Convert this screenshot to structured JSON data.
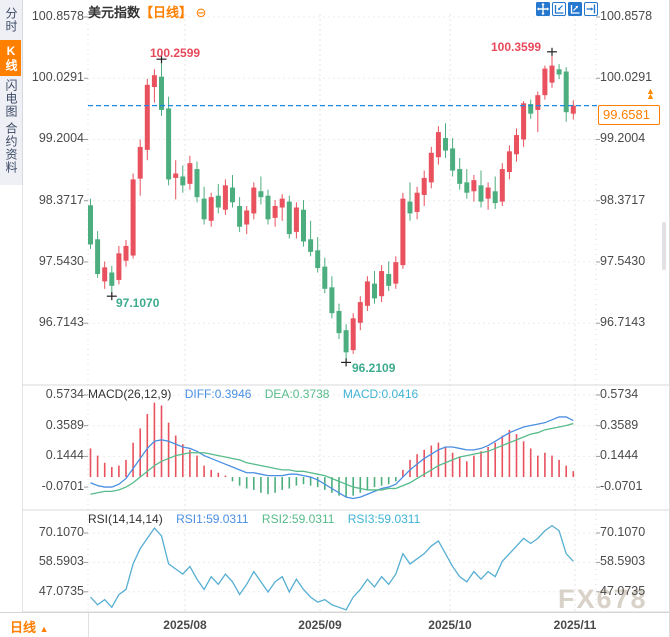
{
  "sidebar": {
    "items": [
      {
        "label": "分时图",
        "active": false
      },
      {
        "label": "K线图",
        "active": true
      },
      {
        "label": "闪电图",
        "active": false
      },
      {
        "label": "合约资料",
        "active": false
      }
    ]
  },
  "header": {
    "title": "美元指数",
    "period": "【日线】",
    "collapse_icon": "⊖"
  },
  "toolbar": {
    "icons": [
      {
        "name": "move-crosshair-icon",
        "active": true
      },
      {
        "name": "compress-time-icon",
        "active": false
      },
      {
        "name": "expand-time-icon",
        "active": true
      },
      {
        "name": "jump-to-latest-icon",
        "active": false
      }
    ]
  },
  "price_marker": {
    "value": "99.6581"
  },
  "bottom_bar": {
    "period_label": "日线",
    "arrow": "▲",
    "dates": [
      "2025/08",
      "2025/09",
      "2025/10",
      "2025/11"
    ]
  },
  "watermark": "FX678",
  "colors": {
    "up": "#e8515d",
    "down": "#4cae7e",
    "accent_orange": "#ff7f00",
    "diff_line": "#4a8fe2",
    "dea_line": "#57bb8a",
    "rsi_line": "#56aed2",
    "dashed_line": "#1e88e5",
    "ann_high": "#e8495a",
    "ann_low": "#3cab8d",
    "icon_blue": "#2678cf",
    "grid": "#e4e4e4",
    "divider": "#d9d9d9"
  },
  "chart_data": [
    {
      "type": "candlestick",
      "title": "美元指数【日线】",
      "y_axis_labels": [
        "100.8578",
        "100.0291",
        "99.2004",
        "98.3717",
        "97.5430",
        "96.7143"
      ],
      "ylim": [
        96.3,
        101.1
      ],
      "x_axis_labels": [
        "2025/08",
        "2025/09",
        "2025/10",
        "2025/11"
      ],
      "grid": true,
      "current_price": 99.6581,
      "current_price_label": "99.6581",
      "annotations": [
        {
          "text": "100.2599",
          "type": "high",
          "candle_index": 10
        },
        {
          "text": "100.3599",
          "type": "high",
          "candle_index": 65
        },
        {
          "text": "97.1070",
          "type": "low",
          "candle_index": 3
        },
        {
          "text": "96.2109",
          "type": "low",
          "candle_index": 36
        }
      ],
      "candles": [
        [
          98.31,
          98.4,
          97.72,
          97.78
        ],
        [
          97.85,
          97.96,
          97.33,
          97.38
        ],
        [
          97.28,
          97.55,
          97.18,
          97.47
        ],
        [
          97.4,
          97.49,
          97.107,
          97.22
        ],
        [
          97.3,
          97.76,
          97.24,
          97.66
        ],
        [
          97.56,
          97.84,
          97.48,
          97.76
        ],
        [
          97.63,
          98.74,
          97.59,
          98.66
        ],
        [
          98.67,
          99.2,
          98.44,
          99.1
        ],
        [
          99.06,
          100.02,
          98.92,
          99.94
        ],
        [
          99.91,
          100.15,
          99.7,
          100.07
        ],
        [
          100.05,
          100.2599,
          99.52,
          99.6
        ],
        [
          99.62,
          99.78,
          98.58,
          98.66
        ],
        [
          98.68,
          98.92,
          98.39,
          98.74
        ],
        [
          98.7,
          98.85,
          98.48,
          98.58
        ],
        [
          98.6,
          98.98,
          98.52,
          98.88
        ],
        [
          98.8,
          98.9,
          98.35,
          98.42
        ],
        [
          98.4,
          98.56,
          98.05,
          98.12
        ],
        [
          98.1,
          98.48,
          98.02,
          98.42
        ],
        [
          98.44,
          98.6,
          98.2,
          98.28
        ],
        [
          98.25,
          98.66,
          98.18,
          98.58
        ],
        [
          98.55,
          98.72,
          98.28,
          98.35
        ],
        [
          98.3,
          98.42,
          97.95,
          98.02
        ],
        [
          98.05,
          98.3,
          97.92,
          98.24
        ],
        [
          98.2,
          98.62,
          98.12,
          98.55
        ],
        [
          98.5,
          98.7,
          98.32,
          98.42
        ],
        [
          98.44,
          98.52,
          98.05,
          98.12
        ],
        [
          98.14,
          98.38,
          98.02,
          98.3
        ],
        [
          98.28,
          98.46,
          98.1,
          98.4
        ],
        [
          98.36,
          98.44,
          97.86,
          97.92
        ],
        [
          97.95,
          98.35,
          97.86,
          98.28
        ],
        [
          98.25,
          98.38,
          97.75,
          97.82
        ],
        [
          97.85,
          98.1,
          97.62,
          97.68
        ],
        [
          97.7,
          97.88,
          97.4,
          97.46
        ],
        [
          97.48,
          97.6,
          97.12,
          97.18
        ],
        [
          97.2,
          97.35,
          96.78,
          96.85
        ],
        [
          96.88,
          96.98,
          96.5,
          96.58
        ],
        [
          96.62,
          96.7,
          96.2109,
          96.32
        ],
        [
          96.35,
          96.85,
          96.3,
          96.78
        ],
        [
          96.72,
          97.08,
          96.62,
          97.0
        ],
        [
          96.95,
          97.35,
          96.88,
          97.28
        ],
        [
          97.25,
          97.42,
          96.98,
          97.05
        ],
        [
          97.08,
          97.5,
          97.0,
          97.42
        ],
        [
          97.38,
          97.55,
          97.15,
          97.22
        ],
        [
          97.25,
          97.62,
          97.18,
          97.54
        ],
        [
          97.5,
          98.48,
          97.45,
          98.4
        ],
        [
          98.36,
          98.62,
          98.1,
          98.2
        ],
        [
          98.22,
          98.56,
          98.12,
          98.48
        ],
        [
          98.45,
          98.78,
          98.3,
          98.68
        ],
        [
          98.62,
          99.1,
          98.54,
          99.02
        ],
        [
          98.96,
          99.38,
          98.86,
          99.3
        ],
        [
          99.22,
          99.42,
          98.95,
          99.05
        ],
        [
          99.08,
          99.22,
          98.7,
          98.78
        ],
        [
          98.8,
          98.95,
          98.52,
          98.6
        ],
        [
          98.62,
          98.8,
          98.4,
          98.48
        ],
        [
          98.5,
          98.72,
          98.36,
          98.65
        ],
        [
          98.58,
          98.78,
          98.28,
          98.36
        ],
        [
          98.4,
          98.62,
          98.25,
          98.55
        ],
        [
          98.5,
          98.7,
          98.26,
          98.34
        ],
        [
          98.36,
          98.88,
          98.3,
          98.8
        ],
        [
          98.76,
          99.12,
          98.66,
          99.04
        ],
        [
          99.0,
          99.35,
          98.9,
          99.26
        ],
        [
          99.2,
          99.72,
          99.1,
          99.69
        ],
        [
          99.68,
          99.74,
          99.48,
          99.55
        ],
        [
          99.6,
          99.85,
          99.3,
          99.8
        ],
        [
          99.8,
          100.2,
          99.74,
          100.16
        ],
        [
          99.97,
          100.3599,
          99.9,
          100.2
        ],
        [
          100.15,
          100.22,
          100.02,
          100.08
        ],
        [
          100.12,
          100.18,
          99.44,
          99.57
        ],
        [
          99.55,
          99.73,
          99.47,
          99.6581
        ]
      ]
    },
    {
      "type": "bar",
      "label": "MACD(26,12,9)",
      "readouts": [
        {
          "text": "DIFF:0.3946",
          "series": "DIFF",
          "value": 0.3946
        },
        {
          "text": "DEA:0.3738",
          "series": "DEA",
          "value": 0.3738
        },
        {
          "text": "MACD:0.0416",
          "series": "MACD",
          "value": 0.0416
        }
      ],
      "y_axis_labels": [
        "0.5734",
        "0.3589",
        "0.1444",
        "-0.0701"
      ],
      "hist": [
        0.2,
        0.15,
        0.1,
        0.07,
        0.08,
        0.12,
        0.24,
        0.34,
        0.44,
        0.52,
        0.5,
        0.38,
        0.29,
        0.23,
        0.19,
        0.15,
        0.08,
        0.05,
        0.03,
        0.01,
        -0.03,
        -0.06,
        -0.08,
        -0.09,
        -0.11,
        -0.12,
        -0.11,
        -0.09,
        -0.08,
        -0.06,
        -0.05,
        -0.06,
        -0.07,
        -0.09,
        -0.11,
        -0.13,
        -0.14,
        -0.13,
        -0.11,
        -0.09,
        -0.07,
        -0.06,
        -0.05,
        -0.03,
        0.05,
        0.12,
        0.16,
        0.19,
        0.22,
        0.24,
        0.21,
        0.17,
        0.14,
        0.11,
        0.15,
        0.18,
        0.21,
        0.24,
        0.29,
        0.33,
        0.3,
        0.25,
        0.2,
        0.15,
        0.17,
        0.15,
        0.12,
        0.08,
        0.0416
      ],
      "diff": [
        -0.04,
        -0.06,
        -0.07,
        -0.07,
        -0.05,
        -0.01,
        0.06,
        0.13,
        0.2,
        0.25,
        0.26,
        0.25,
        0.23,
        0.21,
        0.2,
        0.18,
        0.15,
        0.13,
        0.11,
        0.09,
        0.07,
        0.05,
        0.03,
        0.03,
        0.02,
        0.01,
        0.01,
        0.01,
        0.02,
        0.02,
        0.01,
        0.0,
        -0.02,
        -0.05,
        -0.08,
        -0.11,
        -0.14,
        -0.15,
        -0.14,
        -0.12,
        -0.1,
        -0.08,
        -0.07,
        -0.05,
        0.0,
        0.05,
        0.09,
        0.13,
        0.16,
        0.19,
        0.21,
        0.21,
        0.2,
        0.19,
        0.19,
        0.2,
        0.22,
        0.25,
        0.28,
        0.31,
        0.33,
        0.35,
        0.36,
        0.37,
        0.38,
        0.4,
        0.42,
        0.42,
        0.3946
      ],
      "dea": [
        -0.12,
        -0.11,
        -0.1,
        -0.1,
        -0.09,
        -0.07,
        -0.04,
        0.0,
        0.04,
        0.08,
        0.11,
        0.13,
        0.15,
        0.16,
        0.17,
        0.17,
        0.17,
        0.16,
        0.15,
        0.14,
        0.13,
        0.12,
        0.1,
        0.09,
        0.08,
        0.07,
        0.06,
        0.05,
        0.05,
        0.04,
        0.04,
        0.03,
        0.02,
        0.01,
        -0.01,
        -0.03,
        -0.05,
        -0.07,
        -0.08,
        -0.09,
        -0.09,
        -0.09,
        -0.08,
        -0.08,
        -0.06,
        -0.04,
        -0.01,
        0.02,
        0.05,
        0.08,
        0.1,
        0.12,
        0.14,
        0.15,
        0.16,
        0.17,
        0.18,
        0.2,
        0.22,
        0.24,
        0.26,
        0.28,
        0.3,
        0.31,
        0.33,
        0.34,
        0.35,
        0.36,
        0.3738
      ]
    },
    {
      "type": "line",
      "label": "RSI(14,14,14)",
      "readouts": [
        {
          "text": "RSI1:59.0311",
          "series": "RSI1",
          "value": 59.0311
        },
        {
          "text": "RSI2:59.0311",
          "series": "RSI2",
          "value": 59.0311
        },
        {
          "text": "RSI3:59.0311",
          "series": "RSI3",
          "value": 59.0311
        }
      ],
      "y_axis_labels": [
        "70.1070",
        "58.5903",
        "47.0735"
      ],
      "values": [
        45,
        42,
        44,
        41,
        46,
        48,
        58,
        64,
        68,
        72,
        69,
        58,
        56,
        54,
        57,
        52,
        48,
        53,
        50,
        54,
        51,
        46,
        50,
        55,
        51,
        47,
        51,
        53,
        47,
        52,
        48,
        45,
        43,
        44,
        42,
        41,
        40,
        45,
        48,
        52,
        49,
        53,
        50,
        54,
        62,
        58,
        60,
        62,
        65,
        67,
        62,
        57,
        53,
        51,
        55,
        52,
        55,
        53,
        59,
        62,
        65,
        68,
        66,
        68,
        71,
        73,
        71,
        62,
        59.0311
      ]
    }
  ]
}
